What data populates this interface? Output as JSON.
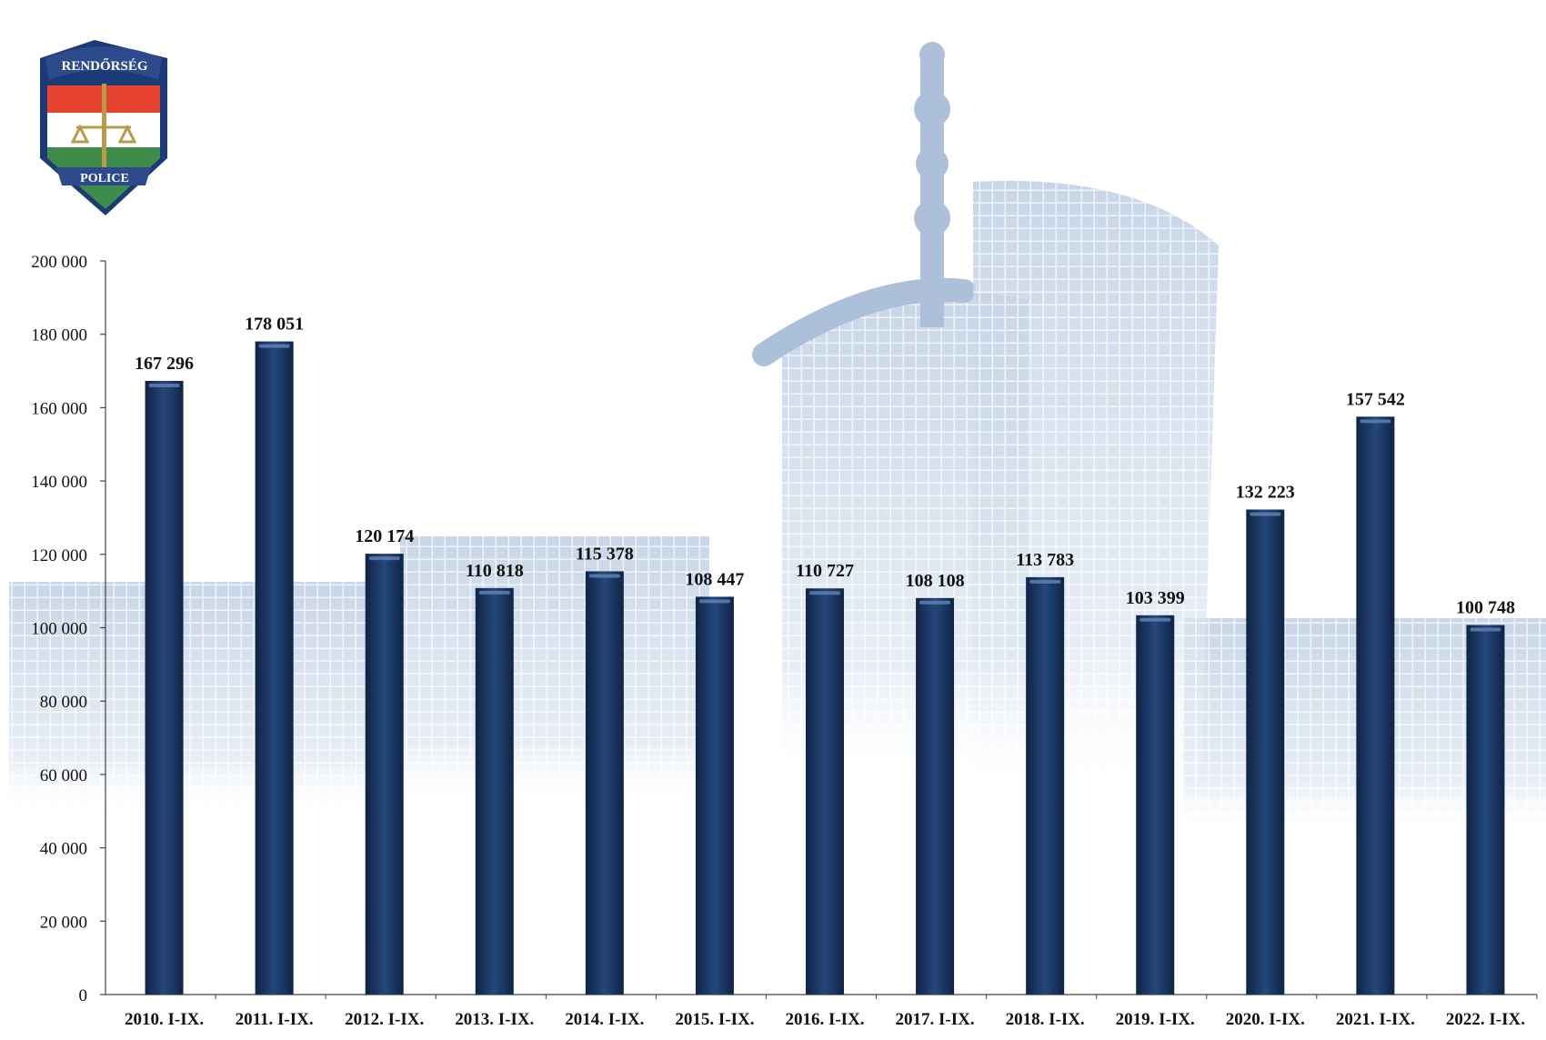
{
  "logo": {
    "top_text": "RENDŐRSÉG",
    "bottom_text": "POLICE",
    "colors": {
      "red": "#e5432f",
      "white": "#ffffff",
      "green": "#3e8c4a",
      "blue": "#2c4a8c",
      "gold": "#b99a4a"
    }
  },
  "colors": {
    "bar": "#1e3a66",
    "bar_highlight": "#5f86b8",
    "axis": "#444444",
    "background_building": "#c7d6e8"
  },
  "chart_data": {
    "type": "bar",
    "title": "",
    "xlabel": "",
    "ylabel": "",
    "ylim": [
      0,
      200000
    ],
    "yticks": [
      0,
      20000,
      40000,
      60000,
      80000,
      100000,
      120000,
      140000,
      160000,
      180000,
      200000
    ],
    "ytick_labels": [
      "0",
      "20 000",
      "40 000",
      "60 000",
      "80 000",
      "100 000",
      "120 000",
      "140 000",
      "160 000",
      "180 000",
      "200 000"
    ],
    "grid": false,
    "legend": "none",
    "categories": [
      "2010. I-IX.",
      "2011. I-IX.",
      "2012. I-IX.",
      "2013. I-IX.",
      "2014. I-IX.",
      "2015. I-IX.",
      "2016. I-IX.",
      "2017. I-IX.",
      "2018. I-IX.",
      "2019. I-IX.",
      "2020. I-IX.",
      "2021. I-IX.",
      "2022. I-IX."
    ],
    "values": [
      167296,
      178051,
      120174,
      110818,
      115378,
      108447,
      110727,
      108108,
      113783,
      103399,
      132223,
      157542,
      100748
    ],
    "data_labels": [
      "167 296",
      "178 051",
      "120 174",
      "110 818",
      "115 378",
      "108 447",
      "110 727",
      "108 108",
      "113 783",
      "103 399",
      "132 223",
      "157 542",
      "100 748"
    ]
  }
}
